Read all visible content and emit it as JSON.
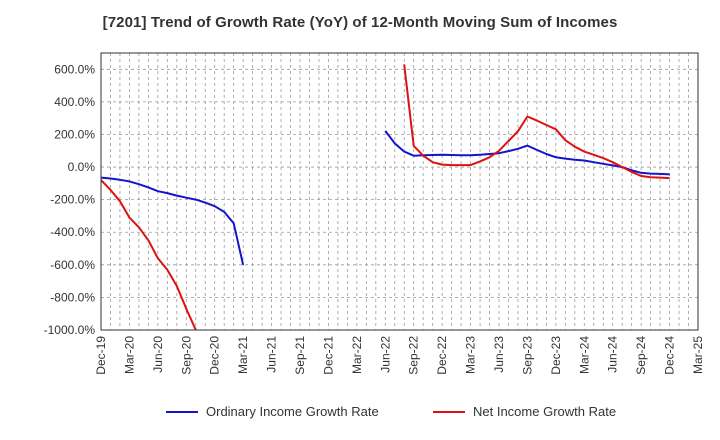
{
  "chart_data": {
    "type": "line",
    "title": "[7201]  Trend of Growth Rate (YoY) of 12-Month Moving Sum of Incomes",
    "xlabel": "",
    "ylabel": "",
    "ylim": [
      -1000,
      700
    ],
    "yticks": [
      -1000,
      -800,
      -600,
      -400,
      -200,
      0,
      200,
      400,
      600
    ],
    "ytick_labels": [
      "-1000.0%",
      "-800.0%",
      "-600.0%",
      "-400.0%",
      "-200.0%",
      "0.0%",
      "200.0%",
      "400.0%",
      "600.0%"
    ],
    "xlim": [
      "2019-12",
      "2025-03"
    ],
    "xtick_labels": [
      "Dec-19",
      "Mar-20",
      "Jun-20",
      "Sep-20",
      "Dec-20",
      "Mar-21",
      "Jun-21",
      "Sep-21",
      "Dec-21",
      "Mar-22",
      "Jun-22",
      "Sep-22",
      "Dec-22",
      "Mar-23",
      "Jun-23",
      "Sep-23",
      "Dec-23",
      "Mar-24",
      "Jun-24",
      "Sep-24",
      "Dec-24",
      "Mar-25"
    ],
    "grid": "dashed",
    "legend_position": "bottom",
    "series": [
      {
        "name": "Ordinary Income Growth Rate",
        "color": "#1414cc",
        "points": [
          [
            "2019-12",
            -65
          ],
          [
            "2020-01",
            -70
          ],
          [
            "2020-02",
            -78
          ],
          [
            "2020-03",
            -88
          ],
          [
            "2020-04",
            -105
          ],
          [
            "2020-05",
            -125
          ],
          [
            "2020-06",
            -148
          ],
          [
            "2020-07",
            -160
          ],
          [
            "2020-08",
            -175
          ],
          [
            "2020-09",
            -188
          ],
          [
            "2020-10",
            -200
          ],
          [
            "2020-11",
            -218
          ],
          [
            "2020-12",
            -240
          ],
          [
            "2021-01",
            -275
          ],
          [
            "2021-02",
            -345
          ],
          [
            "2021-03",
            -600
          ],
          null,
          [
            "2022-06",
            222
          ],
          [
            "2022-07",
            145
          ],
          [
            "2022-08",
            95
          ],
          [
            "2022-09",
            70
          ],
          [
            "2022-10",
            72
          ],
          [
            "2022-11",
            74
          ],
          [
            "2022-12",
            75
          ],
          [
            "2023-01",
            74
          ],
          [
            "2023-02",
            73
          ],
          [
            "2023-03",
            72
          ],
          [
            "2023-04",
            76
          ],
          [
            "2023-05",
            80
          ],
          [
            "2023-06",
            85
          ],
          [
            "2023-07",
            98
          ],
          [
            "2023-08",
            112
          ],
          [
            "2023-09",
            132
          ],
          [
            "2023-10",
            105
          ],
          [
            "2023-11",
            80
          ],
          [
            "2023-12",
            60
          ],
          [
            "2024-01",
            52
          ],
          [
            "2024-02",
            45
          ],
          [
            "2024-03",
            40
          ],
          [
            "2024-04",
            30
          ],
          [
            "2024-05",
            20
          ],
          [
            "2024-06",
            10
          ],
          [
            "2024-07",
            0
          ],
          [
            "2024-08",
            -20
          ],
          [
            "2024-09",
            -35
          ],
          [
            "2024-10",
            -40
          ],
          [
            "2024-11",
            -42
          ],
          [
            "2024-12",
            -45
          ]
        ]
      },
      {
        "name": "Net Income Growth Rate",
        "color": "#dd1111",
        "points": [
          [
            "2019-12",
            -80
          ],
          [
            "2020-01",
            -140
          ],
          [
            "2020-02",
            -210
          ],
          [
            "2020-03",
            -310
          ],
          [
            "2020-04",
            -370
          ],
          [
            "2020-05",
            -450
          ],
          [
            "2020-06",
            -560
          ],
          [
            "2020-07",
            -630
          ],
          [
            "2020-08",
            -730
          ],
          [
            "2020-09",
            -870
          ],
          [
            "2020-10",
            -1000
          ],
          null,
          [
            "2022-08",
            630
          ],
          [
            "2022-09",
            130
          ],
          [
            "2022-10",
            70
          ],
          [
            "2022-11",
            30
          ],
          [
            "2022-12",
            15
          ],
          [
            "2023-01",
            12
          ],
          [
            "2023-02",
            12
          ],
          [
            "2023-03",
            12
          ],
          [
            "2023-04",
            35
          ],
          [
            "2023-05",
            60
          ],
          [
            "2023-06",
            100
          ],
          [
            "2023-07",
            160
          ],
          [
            "2023-08",
            220
          ],
          [
            "2023-09",
            310
          ],
          [
            "2023-10",
            285
          ],
          [
            "2023-11",
            258
          ],
          [
            "2023-12",
            232
          ],
          [
            "2024-01",
            165
          ],
          [
            "2024-02",
            125
          ],
          [
            "2024-03",
            95
          ],
          [
            "2024-04",
            75
          ],
          [
            "2024-05",
            55
          ],
          [
            "2024-06",
            30
          ],
          [
            "2024-07",
            0
          ],
          [
            "2024-08",
            -30
          ],
          [
            "2024-09",
            -55
          ],
          [
            "2024-10",
            -62
          ],
          [
            "2024-11",
            -65
          ],
          [
            "2024-12",
            -68
          ]
        ]
      }
    ]
  }
}
